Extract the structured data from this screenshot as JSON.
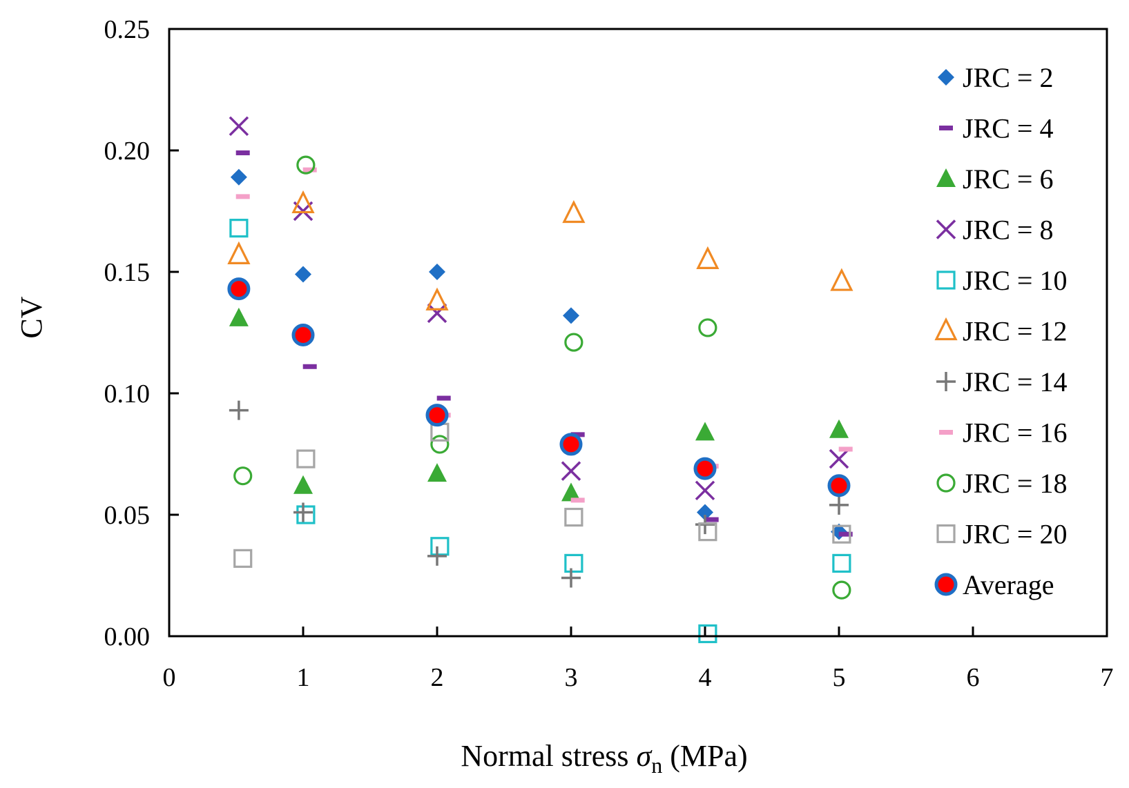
{
  "chart_data": {
    "type": "scatter",
    "title": "",
    "xlabel_main": "Normal stress ",
    "xlabel_symbol": "σ",
    "xlabel_sub": "n",
    "xlabel_unit": " (MPa)",
    "ylabel": "CV",
    "xlim": [
      0,
      7
    ],
    "ylim": [
      0,
      0.25
    ],
    "xticks": [
      0,
      1,
      2,
      3,
      4,
      5,
      6,
      7
    ],
    "xtick_labels": [
      "0",
      "1",
      "2",
      "3",
      "4",
      "5",
      "6",
      "7"
    ],
    "yticks": [
      0,
      0.05,
      0.1,
      0.15,
      0.2,
      0.25
    ],
    "ytick_labels": [
      "0.00",
      "0.05",
      "0.10",
      "0.15",
      "0.20",
      "0.25"
    ],
    "grid": false,
    "legend_position": "right",
    "series": [
      {
        "name": "JRC = 2",
        "marker": "diamond",
        "color": "#1f6fc5",
        "points": [
          [
            0.52,
            0.189
          ],
          [
            1.0,
            0.149
          ],
          [
            2.0,
            0.15
          ],
          [
            3.0,
            0.132
          ],
          [
            4.0,
            0.051
          ],
          [
            5.0,
            0.043
          ]
        ]
      },
      {
        "name": "JRC = 4",
        "marker": "dash",
        "color": "#7b2fa0",
        "points": [
          [
            0.55,
            0.199
          ],
          [
            1.05,
            0.111
          ],
          [
            2.05,
            0.098
          ],
          [
            3.05,
            0.083
          ],
          [
            4.05,
            0.048
          ],
          [
            5.05,
            0.042
          ]
        ]
      },
      {
        "name": "JRC = 6",
        "marker": "triangle",
        "color": "#3aaa35",
        "points": [
          [
            0.52,
            0.131
          ],
          [
            1.0,
            0.062
          ],
          [
            2.0,
            0.067
          ],
          [
            3.0,
            0.059
          ],
          [
            4.0,
            0.084
          ],
          [
            5.0,
            0.085
          ]
        ]
      },
      {
        "name": "JRC = 8",
        "marker": "x",
        "color": "#7b2fa0",
        "points": [
          [
            0.52,
            0.21
          ],
          [
            1.0,
            0.175
          ],
          [
            2.0,
            0.133
          ],
          [
            3.0,
            0.068
          ],
          [
            4.0,
            0.06
          ],
          [
            5.0,
            0.073
          ]
        ]
      },
      {
        "name": "JRC = 10",
        "marker": "square-open",
        "color": "#1fc0c8",
        "points": [
          [
            0.52,
            0.168
          ],
          [
            1.02,
            0.05
          ],
          [
            2.02,
            0.037
          ],
          [
            3.02,
            0.03
          ],
          [
            4.02,
            0.001
          ],
          [
            5.02,
            0.03
          ]
        ]
      },
      {
        "name": "JRC = 12",
        "marker": "triangle-open",
        "color": "#f08a24",
        "points": [
          [
            0.52,
            0.157
          ],
          [
            1.0,
            0.178
          ],
          [
            2.0,
            0.138
          ],
          [
            3.02,
            0.174
          ],
          [
            4.02,
            0.155
          ],
          [
            5.02,
            0.146
          ]
        ]
      },
      {
        "name": "JRC = 14",
        "marker": "plus",
        "color": "#777777",
        "points": [
          [
            0.52,
            0.093
          ],
          [
            1.0,
            0.051
          ],
          [
            2.0,
            0.033
          ],
          [
            3.0,
            0.024
          ],
          [
            4.0,
            0.046
          ],
          [
            5.0,
            0.054
          ]
        ]
      },
      {
        "name": "JRC = 16",
        "marker": "dash",
        "color": "#f4a0c8",
        "points": [
          [
            0.55,
            0.181
          ],
          [
            1.05,
            0.192
          ],
          [
            2.05,
            0.091
          ],
          [
            3.05,
            0.056
          ],
          [
            4.05,
            0.07
          ],
          [
            5.05,
            0.077
          ]
        ]
      },
      {
        "name": "JRC = 18",
        "marker": "circle-open",
        "color": "#3aaa35",
        "points": [
          [
            0.55,
            0.066
          ],
          [
            1.02,
            0.194
          ],
          [
            2.02,
            0.079
          ],
          [
            3.02,
            0.121
          ],
          [
            4.02,
            0.127
          ],
          [
            5.02,
            0.019
          ]
        ]
      },
      {
        "name": "JRC = 20",
        "marker": "square-open",
        "color": "#a6a6a6",
        "points": [
          [
            0.55,
            0.032
          ],
          [
            1.02,
            0.073
          ],
          [
            2.02,
            0.084
          ],
          [
            3.02,
            0.049
          ],
          [
            4.02,
            0.043
          ],
          [
            5.02,
            0.042
          ]
        ]
      },
      {
        "name": "Average",
        "marker": "average",
        "color": "#ff0000",
        "edge_color": "#1f6fc5",
        "points": [
          [
            0.52,
            0.143
          ],
          [
            1.0,
            0.124
          ],
          [
            2.0,
            0.091
          ],
          [
            3.0,
            0.079
          ],
          [
            4.0,
            0.069
          ],
          [
            5.0,
            0.062
          ]
        ]
      }
    ]
  }
}
